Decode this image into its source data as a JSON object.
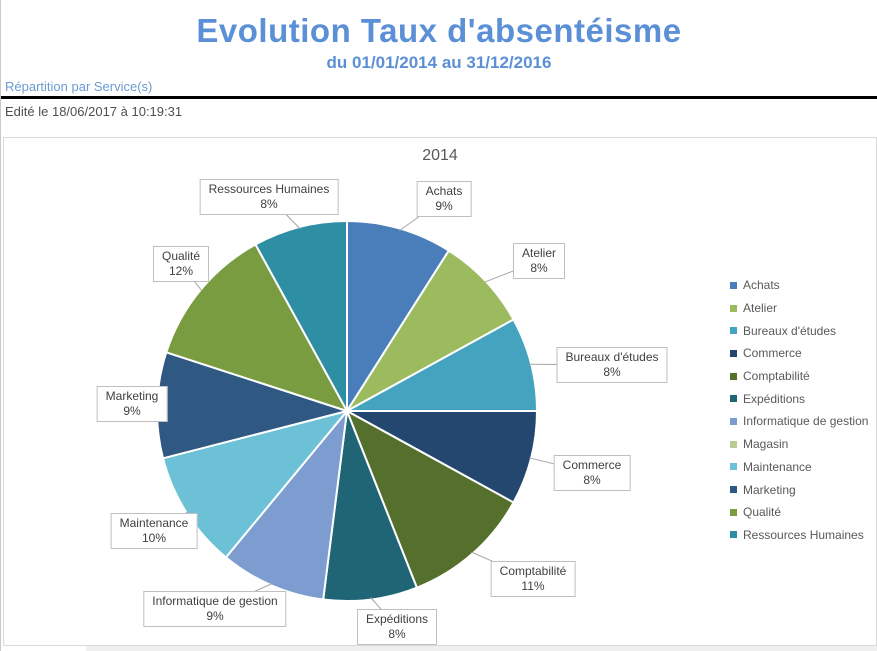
{
  "header": {
    "title": "Evolution Taux d'absentéisme",
    "subtitle": "du 01/01/2014 au 31/12/2016",
    "section": "Répartition par Service(s)",
    "edited": "Edité le 18/06/2017 à 10:19:31"
  },
  "chart_data": {
    "type": "pie",
    "title": "2014",
    "categories": [
      "Achats",
      "Atelier",
      "Bureaux d'études",
      "Commerce",
      "Comptabilité",
      "Expéditions",
      "Informatique de gestion",
      "Magasin",
      "Maintenance",
      "Marketing",
      "Qualité",
      "Ressources Humaines"
    ],
    "values": [
      9,
      8,
      8,
      8,
      11,
      8,
      9,
      0,
      10,
      9,
      12,
      8
    ],
    "unit": "%",
    "colors": [
      "#4A7EBB",
      "#9CBB5F",
      "#44A3BE",
      "#24476F",
      "#55702C",
      "#1F6576",
      "#7D9CD0",
      "#B7CC92",
      "#6CC1D6",
      "#2F5883",
      "#7A9C41",
      "#2E8FA4"
    ],
    "direction": "clockwise",
    "start_angle_deg": 0,
    "legend_position": "right",
    "labels": "category name + percent in callout boxes",
    "slice_border_color": "#FFFFFF"
  }
}
